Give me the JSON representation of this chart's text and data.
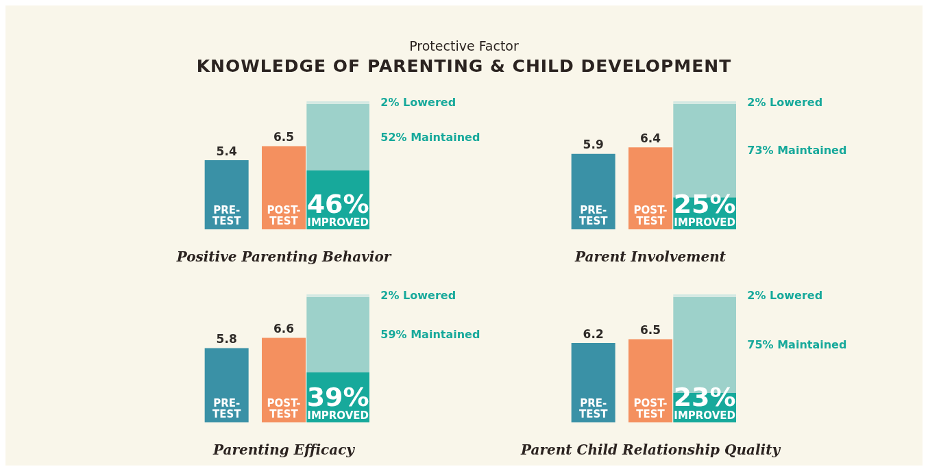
{
  "chart_data": [
    {
      "type": "other",
      "subtitle": "Protective Factor",
      "title": "KNOWLEDGE OF PARENTING & CHILD DEVELOPMENT"
    },
    {
      "type": "bar",
      "xlabel": "Positive Parenting Behavior",
      "categories": [
        "PRE-TEST",
        "POST-TEST",
        null
      ],
      "ylim": [
        0,
        10
      ],
      "y2lim": [
        0,
        100
      ],
      "stacked": true,
      "annotations": [
        "2% Lowered",
        "52% Maintained"
      ],
      "series": [
        {
          "values": [
            5.4,
            6.5,
            null
          ],
          "colors": [
            "#3a91a6",
            "#f4905f",
            null
          ],
          "value_labels": [
            "5.4",
            "6.5",
            null
          ]
        },
        {
          "axis": "y2",
          "color": "#17a99b",
          "values": [
            null,
            null,
            46
          ],
          "value_labels": [
            null,
            null,
            "46% IMPROVED"
          ]
        },
        {
          "axis": "y2",
          "color": "#9dd1ca",
          "values": [
            null,
            null,
            52
          ]
        },
        {
          "axis": "y2",
          "color": "#d4e9e3",
          "values": [
            null,
            null,
            2
          ]
        }
      ]
    },
    {
      "type": "bar",
      "xlabel": "Parent Involvement",
      "categories": [
        "PRE-TEST",
        "POST-TEST",
        null
      ],
      "ylim": [
        0,
        10
      ],
      "y2lim": [
        0,
        100
      ],
      "stacked": true,
      "annotations": [
        "2% Lowered",
        "73% Maintained"
      ],
      "series": [
        {
          "values": [
            5.9,
            6.4,
            null
          ],
          "colors": [
            "#3a91a6",
            "#f4905f",
            null
          ],
          "value_labels": [
            "5.9",
            "6.4",
            null
          ]
        },
        {
          "axis": "y2",
          "color": "#17a99b",
          "values": [
            null,
            null,
            25
          ],
          "value_labels": [
            null,
            null,
            "25% IMPROVED"
          ]
        },
        {
          "axis": "y2",
          "color": "#9dd1ca",
          "values": [
            null,
            null,
            73
          ]
        },
        {
          "axis": "y2",
          "color": "#d4e9e3",
          "values": [
            null,
            null,
            2
          ]
        }
      ]
    },
    {
      "type": "bar",
      "xlabel": "Parenting Efficacy",
      "categories": [
        "PRE-TEST",
        "POST-TEST",
        null
      ],
      "ylim": [
        0,
        10
      ],
      "y2lim": [
        0,
        100
      ],
      "stacked": true,
      "annotations": [
        "2% Lowered",
        "59% Maintained"
      ],
      "series": [
        {
          "values": [
            5.8,
            6.6,
            null
          ],
          "colors": [
            "#3a91a6",
            "#f4905f",
            null
          ],
          "value_labels": [
            "5.8",
            "6.6",
            null
          ]
        },
        {
          "axis": "y2",
          "color": "#17a99b",
          "values": [
            null,
            null,
            39
          ],
          "value_labels": [
            null,
            null,
            "39% IMPROVED"
          ]
        },
        {
          "axis": "y2",
          "color": "#9dd1ca",
          "values": [
            null,
            null,
            59
          ]
        },
        {
          "axis": "y2",
          "color": "#d4e9e3",
          "values": [
            null,
            null,
            2
          ]
        }
      ]
    },
    {
      "type": "bar",
      "xlabel": "Parent Child Relationship Quality",
      "categories": [
        "PRE-TEST",
        "POST-TEST",
        null
      ],
      "ylim": [
        0,
        10
      ],
      "y2lim": [
        0,
        100
      ],
      "stacked": true,
      "annotations": [
        "2% Lowered",
        "75% Maintained"
      ],
      "series": [
        {
          "values": [
            6.2,
            6.5,
            null
          ],
          "colors": [
            "#3a91a6",
            "#f4905f",
            null
          ],
          "value_labels": [
            "6.2",
            "6.5",
            null
          ]
        },
        {
          "axis": "y2",
          "color": "#17a99b",
          "values": [
            null,
            null,
            23
          ],
          "value_labels": [
            null,
            null,
            "23% IMPROVED"
          ]
        },
        {
          "axis": "y2",
          "color": "#9dd1ca",
          "values": [
            null,
            null,
            75
          ]
        },
        {
          "axis": "y2",
          "color": "#d4e9e3",
          "values": [
            null,
            null,
            2
          ]
        }
      ]
    }
  ]
}
